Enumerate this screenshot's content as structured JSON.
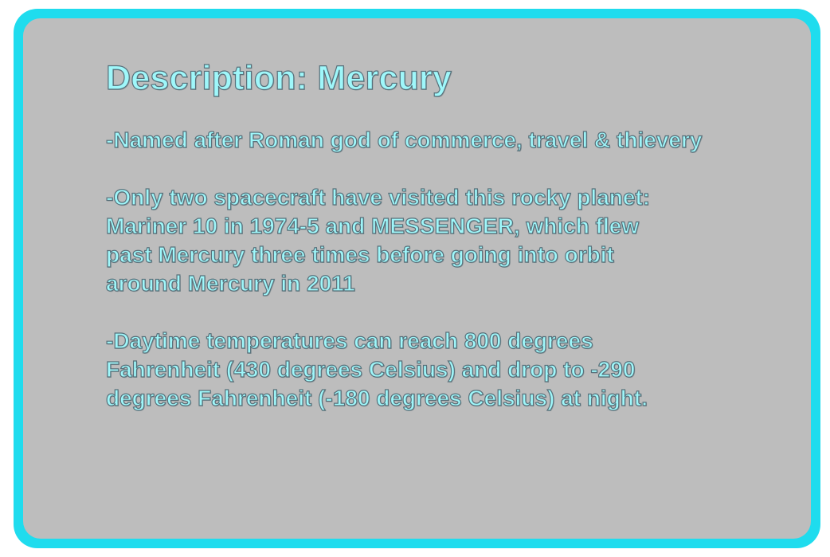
{
  "slide": {
    "title": "Description: Mercury",
    "paragraphs": [
      "-Named after Roman god of commerce, travel & thievery",
      "-Only two spacecraft have visited this rocky planet:\nMariner 10 in 1974-5 and MESSENGER, which flew\npast Mercury three times before going into orbit\naround Mercury in 2011",
      "-Daytime temperatures can reach 800 degrees\nFahrenheit (430 degrees Celsius) and drop to -290\ndegrees Fahrenheit (-180 degrees Celsius) at night."
    ]
  },
  "colors": {
    "frame": "#1fdcee",
    "panel": "#bdbdbd",
    "text": "#9ff7fa",
    "text_outline": "#58707a"
  }
}
